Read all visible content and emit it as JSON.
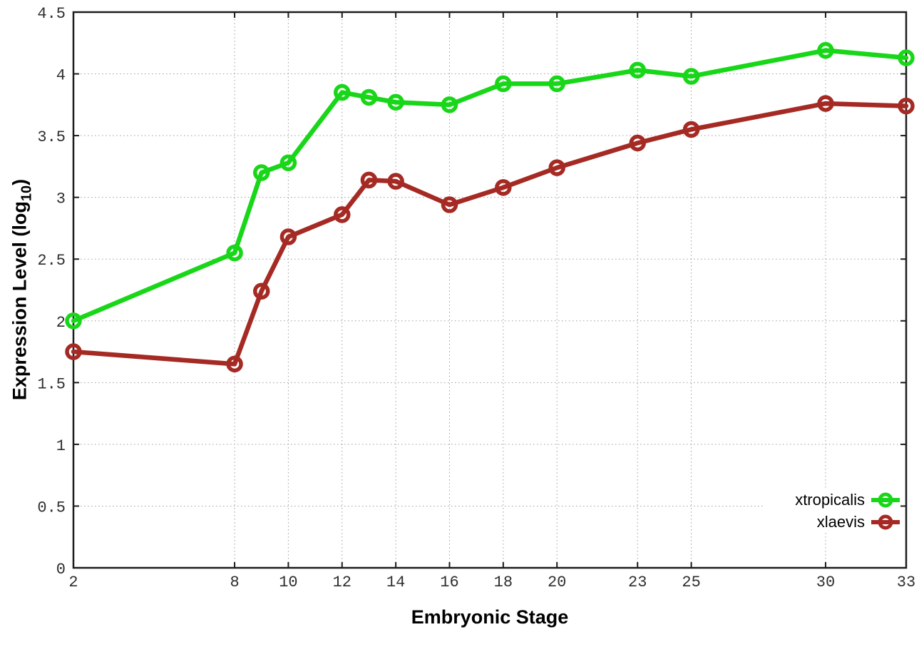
{
  "chart_data": {
    "type": "line",
    "title": "",
    "xlabel": "Embryonic Stage",
    "ylabel": "Expression Level (log10)",
    "ylabel_prefix": "Expression Level (log",
    "ylabel_sub": "10",
    "ylabel_suffix": ")",
    "xlim": [
      2,
      33
    ],
    "ylim": [
      0,
      4.5
    ],
    "x_ticks": [
      2,
      8,
      10,
      12,
      14,
      16,
      18,
      20,
      23,
      25,
      30,
      33
    ],
    "y_ticks": [
      0,
      0.5,
      1,
      1.5,
      2,
      2.5,
      3,
      3.5,
      4,
      4.5
    ],
    "grid": true,
    "grid_style": "dotted",
    "legend_position": "bottom-right",
    "x": [
      2,
      8,
      9,
      10,
      12,
      13,
      14,
      16,
      18,
      20,
      23,
      25,
      30,
      33
    ],
    "series": [
      {
        "name": "xtropicalis",
        "color": "#18d618",
        "marker": "open-circle",
        "values": [
          2.0,
          2.55,
          3.2,
          3.28,
          3.85,
          3.81,
          3.77,
          3.75,
          3.92,
          3.92,
          4.03,
          3.98,
          4.19,
          4.13
        ]
      },
      {
        "name": "xlaevis",
        "color": "#a52a24",
        "marker": "open-circle",
        "values": [
          1.75,
          1.65,
          2.24,
          2.68,
          2.86,
          3.14,
          3.13,
          2.94,
          3.08,
          3.24,
          3.44,
          3.55,
          3.76,
          3.74
        ]
      }
    ]
  },
  "colors": {
    "background": "#ffffff",
    "plot_border": "#1c1c1c",
    "grid": "#9e9e9e",
    "tick_text": "#2e2e2e"
  }
}
